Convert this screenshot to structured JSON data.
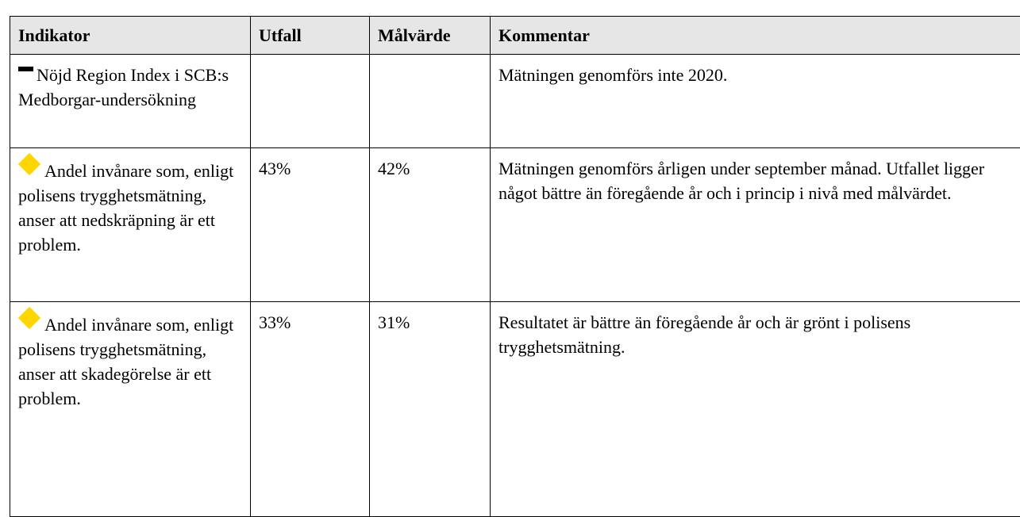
{
  "table": {
    "header": [
      "Indikator",
      "Utfall",
      "Målvärde",
      "Kommentar"
    ],
    "rows": [
      {
        "indicator": "Nöjd Region Index i SCB:s Medborgar-undersökning",
        "comment": "Mätningen genomförs inte 2020."
      },
      {
        "indicator": "Andel invånare som, enligt polisens trygghetsmätning, anser att nedskräpning är ett problem.",
        "outcome": "43%",
        "target": "42%",
        "comment": "Mätningen genomförs årligen under september månad. Utfallet ligger något bättre än föregående år och i princip i nivå med målvärdet."
      },
      {
        "indicator": "Andel invånare som, enligt polisens trygghetsmätning, anser att skadegörelse är ett problem.",
        "outcome": "33%",
        "target": "31%",
        "comment": "Resultatet är bättre än föregående år och är grönt i polisens trygghetsmätning."
      }
    ]
  }
}
